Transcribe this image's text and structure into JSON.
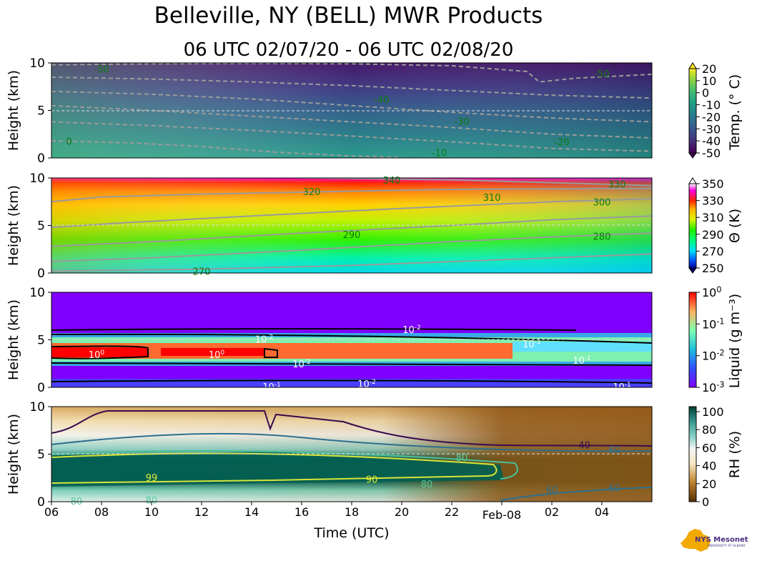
{
  "figure": {
    "title": "Belleville, NY (BELL) MWR Products",
    "subtitle": "06 UTC 02/07/20 - 06 UTC 02/08/20",
    "xlabel": "Time (UTC)",
    "xticks": [
      "06",
      "08",
      "10",
      "12",
      "14",
      "16",
      "18",
      "20",
      "22",
      "Feb-08",
      "02",
      "04"
    ],
    "logo_text": "NYS Mesonet",
    "logo_subtext": "UNIVERSITY AT ALBANY"
  },
  "chart_data": [
    {
      "type": "heatmap",
      "name": "temperature",
      "ylabel": "Height (km)",
      "yticks": [
        "0",
        "5",
        "10"
      ],
      "ylim": [
        0,
        10
      ],
      "xlim_hours": [
        0,
        24
      ],
      "colorbar_label": "Temp. (° C)",
      "colorbar_ticks": [
        "20",
        "10",
        "0",
        "-10",
        "-20",
        "-30",
        "-40",
        "-50"
      ],
      "contour_levels": [
        {
          "label": "-50",
          "points": [
            [
              0,
              9.8
            ],
            [
              4,
              9.9
            ],
            [
              8,
              9.95
            ],
            [
              12,
              9.9
            ],
            [
              16,
              9.7
            ],
            [
              19,
              9.1
            ],
            [
              19.5,
              8.0
            ],
            [
              21,
              8.4
            ],
            [
              24,
              8.8
            ]
          ]
        },
        {
          "label": "-40",
          "points": [
            [
              0,
              8.5
            ],
            [
              4,
              8.3
            ],
            [
              8,
              8.0
            ],
            [
              12,
              7.6
            ],
            [
              16,
              7.1
            ],
            [
              20,
              6.6
            ],
            [
              24,
              6.3
            ]
          ]
        },
        {
          "label": "-30",
          "points": [
            [
              0,
              7.0
            ],
            [
              4,
              6.7
            ],
            [
              8,
              6.2
            ],
            [
              12,
              5.5
            ],
            [
              16,
              4.8
            ],
            [
              20,
              4.2
            ],
            [
              24,
              3.8
            ]
          ]
        },
        {
          "label": "-20",
          "points": [
            [
              0,
              5.5
            ],
            [
              4,
              5.0
            ],
            [
              8,
              4.4
            ],
            [
              12,
              3.8
            ],
            [
              16,
              3.2
            ],
            [
              20,
              2.5
            ],
            [
              24,
              2.1
            ]
          ]
        },
        {
          "label": "-10",
          "points": [
            [
              0,
              3.8
            ],
            [
              4,
              3.4
            ],
            [
              8,
              2.9
            ],
            [
              12,
              2.3
            ],
            [
              16,
              1.7
            ],
            [
              20,
              1.0
            ],
            [
              24,
              0.7
            ]
          ]
        },
        {
          "label": "0",
          "points": [
            [
              0,
              1.8
            ],
            [
              3,
              1.6
            ],
            [
              6,
              1.2
            ],
            [
              9,
              0.6
            ],
            [
              12,
              0.2
            ],
            [
              14,
              0.05
            ]
          ]
        }
      ],
      "contour_labels": [
        {
          "text": "-50",
          "x": 2.0,
          "y": 9.3
        },
        {
          "text": "-50",
          "x": 22.0,
          "y": 8.8
        },
        {
          "text": "-40",
          "x": 13.2,
          "y": 6.1
        },
        {
          "text": "-30",
          "x": 16.4,
          "y": 3.8
        },
        {
          "text": "-20",
          "x": 20.4,
          "y": 1.6
        },
        {
          "text": "-10",
          "x": 15.5,
          "y": 0.5
        },
        {
          "text": "0",
          "x": 0.7,
          "y": 1.7
        }
      ]
    },
    {
      "type": "heatmap",
      "name": "potential_temperature",
      "ylabel": "Height (km)",
      "yticks": [
        "0",
        "5",
        "10"
      ],
      "ylim": [
        0,
        10
      ],
      "colorbar_label": "Θ (K)",
      "colorbar_ticks": [
        "350",
        "330",
        "310",
        "290",
        "270",
        "250"
      ],
      "contour_levels": [
        {
          "label": "330",
          "points": [
            [
              0,
              10.2
            ],
            [
              8,
              10.1
            ],
            [
              16,
              9.8
            ],
            [
              24,
              9.2
            ]
          ]
        },
        {
          "label": "320",
          "points": [
            [
              0,
              7.5
            ],
            [
              2,
              8.0
            ],
            [
              6,
              8.3
            ],
            [
              10,
              8.5
            ],
            [
              16,
              8.8
            ],
            [
              24,
              8.9
            ]
          ]
        },
        {
          "label": "310",
          "points": [
            [
              0,
              4.8
            ],
            [
              3,
              5.3
            ],
            [
              8,
              6.0
            ],
            [
              14,
              6.8
            ],
            [
              20,
              7.5
            ],
            [
              24,
              7.8
            ]
          ]
        },
        {
          "label": "300",
          "points": [
            [
              0,
              2.8
            ],
            [
              4,
              3.3
            ],
            [
              10,
              4.2
            ],
            [
              16,
              5.0
            ],
            [
              20,
              5.6
            ],
            [
              24,
              6.0
            ]
          ]
        },
        {
          "label": "290",
          "points": [
            [
              0,
              1.2
            ],
            [
              4,
              1.6
            ],
            [
              10,
              2.4
            ],
            [
              16,
              3.3
            ],
            [
              20,
              3.8
            ],
            [
              24,
              4.2
            ]
          ]
        },
        {
          "label": "280",
          "points": [
            [
              0,
              0.2
            ],
            [
              6,
              0.4
            ],
            [
              12,
              0.8
            ],
            [
              18,
              1.4
            ],
            [
              24,
              2.0
            ]
          ]
        }
      ],
      "contour_labels": [
        {
          "text": "340",
          "x": 13.6,
          "y": 9.7
        },
        {
          "text": "330",
          "x": 22.6,
          "y": 9.3
        },
        {
          "text": "320",
          "x": 10.4,
          "y": 8.5
        },
        {
          "text": "310",
          "x": 17.6,
          "y": 7.9
        },
        {
          "text": "300",
          "x": 22.0,
          "y": 7.4
        },
        {
          "text": "290",
          "x": 12.0,
          "y": 4.0
        },
        {
          "text": "280",
          "x": 22.0,
          "y": 3.8
        },
        {
          "text": "270",
          "x": 6.0,
          "y": 0.1
        }
      ]
    },
    {
      "type": "heatmap",
      "name": "liquid_water",
      "ylabel": "Height (km)",
      "yticks": [
        "0",
        "5",
        "10"
      ],
      "ylim": [
        0,
        10
      ],
      "colorbar_label": "Liquid (g m⁻³)",
      "colorbar_ticks": [
        "10^0",
        "10^-1",
        "10^-2",
        "10^-3"
      ],
      "contour_labels": [
        {
          "text": "10^-2",
          "x": 8.5,
          "y": 5.0
        },
        {
          "text": "10^-2",
          "x": 14.4,
          "y": 6.0
        },
        {
          "text": "10^-1",
          "x": 19.2,
          "y": 4.5
        },
        {
          "text": "10^0",
          "x": 1.8,
          "y": 3.4
        },
        {
          "text": "10^0",
          "x": 6.6,
          "y": 3.4
        },
        {
          "text": "10^-2",
          "x": 10.0,
          "y": 2.4
        },
        {
          "text": "10^-1",
          "x": 21.2,
          "y": 2.8
        },
        {
          "text": "10^-1",
          "x": 8.8,
          "y": 0.0
        },
        {
          "text": "10^-2",
          "x": 12.6,
          "y": 0.3
        },
        {
          "text": "10^-1",
          "x": 22.8,
          "y": 0.0
        }
      ]
    },
    {
      "type": "heatmap",
      "name": "relative_humidity",
      "ylabel": "Height (km)",
      "yticks": [
        "0",
        "5",
        "10"
      ],
      "ylim": [
        0,
        10
      ],
      "colorbar_label": "RH (%)",
      "colorbar_ticks": [
        "100",
        "80",
        "60",
        "40",
        "20",
        "0"
      ],
      "contour_labels": [
        {
          "text": "40",
          "x": 21.3,
          "y": 5.9
        },
        {
          "text": "60",
          "x": 22.5,
          "y": 5.4
        },
        {
          "text": "80",
          "x": 16.4,
          "y": 4.6
        },
        {
          "text": "99",
          "x": 4.0,
          "y": 2.5
        },
        {
          "text": "90",
          "x": 12.8,
          "y": 2.3
        },
        {
          "text": "80",
          "x": 15.0,
          "y": 1.8
        },
        {
          "text": "60",
          "x": 20.0,
          "y": 1.2
        },
        {
          "text": "60",
          "x": 22.5,
          "y": 1.4
        },
        {
          "text": "80",
          "x": 4.0,
          "y": 0.1
        },
        {
          "text": "80",
          "x": 1.0,
          "y": 0.0
        }
      ]
    }
  ]
}
